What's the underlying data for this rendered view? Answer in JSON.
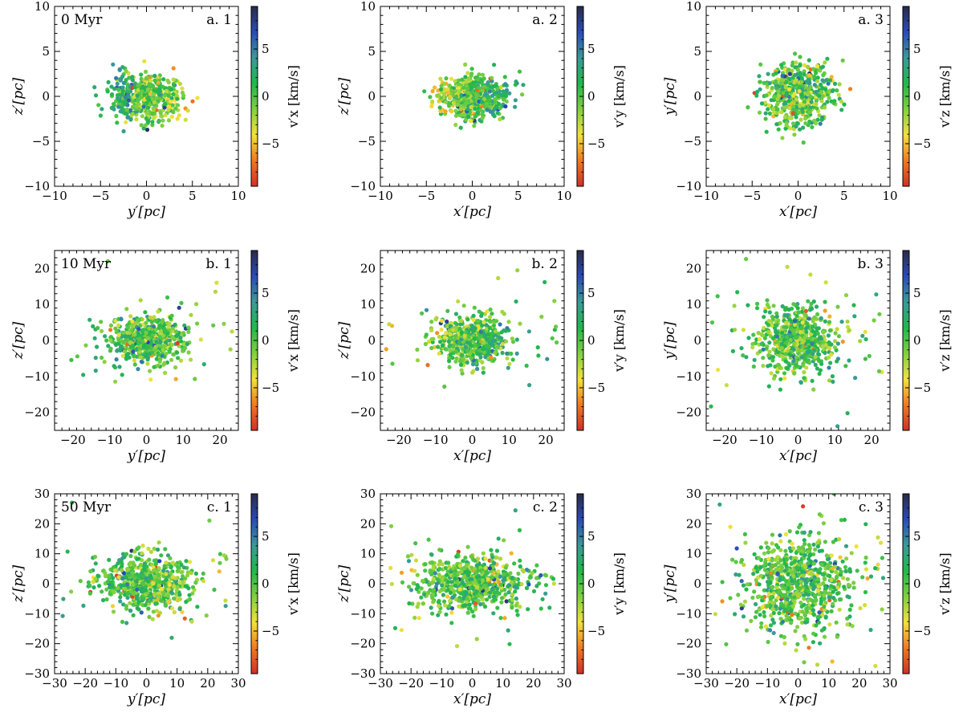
{
  "figure": {
    "colormap": [
      "#d03028",
      "#f07a20",
      "#f3e23a",
      "#7fd040",
      "#20b84a",
      "#3a9a9a",
      "#2a4ab8",
      "#2a2a48"
    ],
    "colorbar_ticks": [
      -5,
      0,
      5
    ],
    "color_range": [
      -9.5,
      9.5
    ]
  },
  "chart_data": [
    {
      "id": "a1",
      "type": "scatter",
      "time_label": "0 Myr",
      "panel_label": "a. 1",
      "xlabel": "y′[pc]",
      "ylabel": "z′[pc]",
      "colorbar_label": "v′x [km/s]",
      "xlim": [
        -10,
        10
      ],
      "ylim": [
        -10,
        10
      ],
      "xticks": [
        -10,
        -5,
        0,
        5,
        10
      ],
      "yticks": [
        -10,
        -5,
        0,
        5,
        10
      ],
      "cluster": {
        "sx": 1.9,
        "sy": 1.3,
        "n": 520,
        "outliers": 0,
        "vgrad": -1.6,
        "vscale": 2.2
      }
    },
    {
      "id": "a2",
      "type": "scatter",
      "time_label": "",
      "panel_label": "a. 2",
      "xlabel": "x′[pc]",
      "ylabel": "z′[pc]",
      "colorbar_label": "v′y [km/s]",
      "xlim": [
        -10,
        10
      ],
      "ylim": [
        -10,
        10
      ],
      "xticks": [
        -10,
        -5,
        0,
        5,
        10
      ],
      "yticks": [
        -10,
        -5,
        0,
        5,
        10
      ],
      "cluster": {
        "sx": 1.9,
        "sy": 1.3,
        "n": 520,
        "outliers": 0,
        "vgrad": 1.6,
        "vscale": 2.2
      }
    },
    {
      "id": "a3",
      "type": "scatter",
      "time_label": "",
      "panel_label": "a. 3",
      "xlabel": "x′[pc]",
      "ylabel": "y′[pc]",
      "colorbar_label": "v′z [km/s]",
      "xlim": [
        -10,
        10
      ],
      "ylim": [
        -10,
        10
      ],
      "xticks": [
        -10,
        -5,
        0,
        5,
        10
      ],
      "yticks": [
        -10,
        -5,
        0,
        5,
        10
      ],
      "cluster": {
        "sx": 1.9,
        "sy": 1.8,
        "n": 560,
        "outliers": 0,
        "vgrad": 0.0,
        "vscale": 2.4
      }
    },
    {
      "id": "b1",
      "type": "scatter",
      "time_label": "10 Myr",
      "panel_label": "b. 1",
      "xlabel": "y′[pc]",
      "ylabel": "z′[pc]",
      "colorbar_label": "v′x [km/s]",
      "xlim": [
        -25,
        25
      ],
      "ylim": [
        -25,
        25
      ],
      "xticks": [
        -20,
        -10,
        0,
        10,
        20
      ],
      "yticks": [
        -20,
        -10,
        0,
        10,
        20
      ],
      "cluster": {
        "sx": 5.2,
        "sy": 3.3,
        "n": 560,
        "outliers": 40,
        "vgrad": -0.6,
        "vscale": 2.2
      }
    },
    {
      "id": "b2",
      "type": "scatter",
      "time_label": "",
      "panel_label": "b. 2",
      "xlabel": "x′[pc]",
      "ylabel": "z′[pc]",
      "colorbar_label": "v′y [km/s]",
      "xlim": [
        -25,
        25
      ],
      "ylim": [
        -25,
        25
      ],
      "xticks": [
        -20,
        -10,
        0,
        10,
        20
      ],
      "yticks": [
        -20,
        -10,
        0,
        10,
        20
      ],
      "cluster": {
        "sx": 5.0,
        "sy": 3.3,
        "n": 540,
        "outliers": 40,
        "vgrad": 0.5,
        "vscale": 2.2
      }
    },
    {
      "id": "b3",
      "type": "scatter",
      "time_label": "",
      "panel_label": "b. 3",
      "xlabel": "x′[pc]",
      "ylabel": "y′[pc]",
      "colorbar_label": "v′z [km/s]",
      "xlim": [
        -25,
        25
      ],
      "ylim": [
        -25,
        25
      ],
      "xticks": [
        -20,
        -10,
        0,
        10,
        20
      ],
      "yticks": [
        -20,
        -10,
        0,
        10,
        20
      ],
      "cluster": {
        "sx": 5.0,
        "sy": 5.0,
        "n": 580,
        "outliers": 60,
        "vgrad": 0.0,
        "vscale": 2.2
      }
    },
    {
      "id": "c1",
      "type": "scatter",
      "time_label": "50 Myr",
      "panel_label": "c. 1",
      "xlabel": "y′[pc]",
      "ylabel": "z′[pc]",
      "colorbar_label": "v′x [km/s]",
      "xlim": [
        -30,
        30
      ],
      "ylim": [
        -30,
        30
      ],
      "xticks": [
        -30,
        -20,
        -10,
        0,
        10,
        20,
        30
      ],
      "yticks": [
        -30,
        -20,
        -10,
        0,
        10,
        20,
        30
      ],
      "cluster": {
        "sx": 7.5,
        "sy": 4.5,
        "n": 600,
        "outliers": 50,
        "vgrad": -0.4,
        "vscale": 2.2
      }
    },
    {
      "id": "c2",
      "type": "scatter",
      "time_label": "",
      "panel_label": "c. 2",
      "xlabel": "x′[pc]",
      "ylabel": "z′[pc]",
      "colorbar_label": "v′y [km/s]",
      "xlim": [
        -30,
        30
      ],
      "ylim": [
        -30,
        30
      ],
      "xticks": [
        -30,
        -20,
        -10,
        0,
        10,
        20,
        30
      ],
      "yticks": [
        -30,
        -20,
        -10,
        0,
        10,
        20,
        30
      ],
      "cluster": {
        "sx": 9.0,
        "sy": 4.5,
        "n": 620,
        "outliers": 70,
        "vgrad": 0.3,
        "vscale": 2.2
      }
    },
    {
      "id": "c3",
      "type": "scatter",
      "time_label": "",
      "panel_label": "c. 3",
      "xlabel": "x′[pc]",
      "ylabel": "y′[pc]",
      "colorbar_label": "v′z [km/s]",
      "xlim": [
        -30,
        30
      ],
      "ylim": [
        -30,
        30
      ],
      "xticks": [
        -30,
        -20,
        -10,
        0,
        10,
        20,
        30
      ],
      "yticks": [
        -30,
        -20,
        -10,
        0,
        10,
        20,
        30
      ],
      "cluster": {
        "sx": 8.5,
        "sy": 8.0,
        "n": 700,
        "outliers": 80,
        "vgrad": 0.0,
        "vscale": 2.2
      }
    }
  ]
}
